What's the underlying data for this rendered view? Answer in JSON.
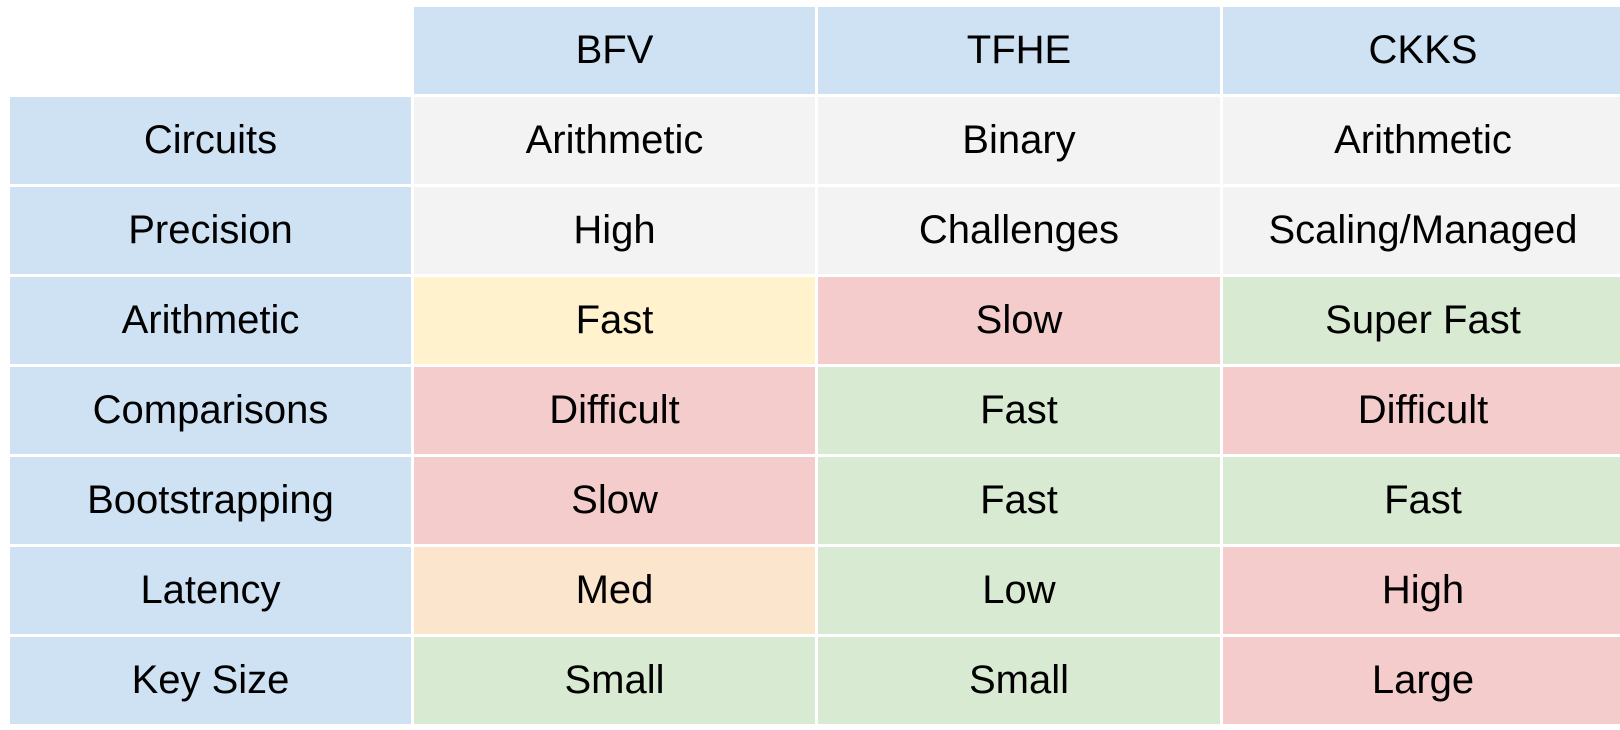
{
  "table": {
    "columns": [
      "BFV",
      "TFHE",
      "CKKS"
    ],
    "rows": [
      {
        "label": "Circuits",
        "cells": [
          {
            "text": "Arithmetic",
            "tone": "neutral"
          },
          {
            "text": "Binary",
            "tone": "neutral"
          },
          {
            "text": "Arithmetic",
            "tone": "neutral"
          }
        ]
      },
      {
        "label": "Precision",
        "cells": [
          {
            "text": "High",
            "tone": "neutral"
          },
          {
            "text": "Challenges",
            "tone": "neutral"
          },
          {
            "text": "Scaling/Managed",
            "tone": "neutral"
          }
        ]
      },
      {
        "label": "Arithmetic",
        "cells": [
          {
            "text": "Fast",
            "tone": "ok"
          },
          {
            "text": "Slow",
            "tone": "bad"
          },
          {
            "text": "Super Fast",
            "tone": "good"
          }
        ]
      },
      {
        "label": "Comparisons",
        "cells": [
          {
            "text": "Difficult",
            "tone": "bad"
          },
          {
            "text": "Fast",
            "tone": "good"
          },
          {
            "text": "Difficult",
            "tone": "bad"
          }
        ]
      },
      {
        "label": "Bootstrapping",
        "cells": [
          {
            "text": "Slow",
            "tone": "bad"
          },
          {
            "text": "Fast",
            "tone": "good"
          },
          {
            "text": "Fast",
            "tone": "good"
          }
        ]
      },
      {
        "label": "Latency",
        "cells": [
          {
            "text": "Med",
            "tone": "mid"
          },
          {
            "text": "Low",
            "tone": "good"
          },
          {
            "text": "High",
            "tone": "bad"
          }
        ]
      },
      {
        "label": "Key Size",
        "cells": [
          {
            "text": "Small",
            "tone": "good"
          },
          {
            "text": "Small",
            "tone": "good"
          },
          {
            "text": "Large",
            "tone": "bad"
          }
        ]
      }
    ]
  },
  "colors": {
    "header": "#cfe2f3",
    "neutral": "#f3f3f3",
    "good": "#d9ead3",
    "ok": "#fff2cc",
    "mid": "#fce5cd",
    "bad": "#f4cccc"
  }
}
